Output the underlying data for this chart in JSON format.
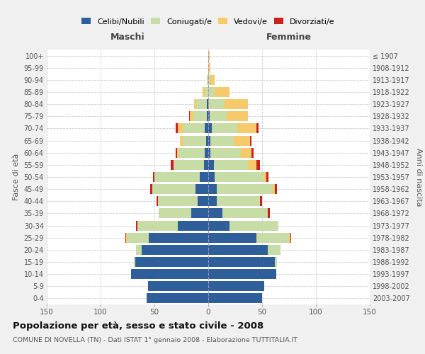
{
  "age_groups": [
    "0-4",
    "5-9",
    "10-14",
    "15-19",
    "20-24",
    "25-29",
    "30-34",
    "35-39",
    "40-44",
    "45-49",
    "50-54",
    "55-59",
    "60-64",
    "65-69",
    "70-74",
    "75-79",
    "80-84",
    "85-89",
    "90-94",
    "95-99",
    "100+"
  ],
  "birth_years": [
    "2003-2007",
    "1998-2002",
    "1993-1997",
    "1988-1992",
    "1983-1987",
    "1978-1982",
    "1973-1977",
    "1968-1972",
    "1963-1967",
    "1958-1962",
    "1953-1957",
    "1948-1952",
    "1943-1947",
    "1938-1942",
    "1933-1937",
    "1928-1932",
    "1923-1927",
    "1918-1922",
    "1913-1917",
    "1908-1912",
    "≤ 1907"
  ],
  "males": {
    "celibe": [
      57,
      56,
      72,
      68,
      62,
      55,
      28,
      16,
      10,
      12,
      8,
      4,
      3,
      2,
      3,
      1,
      1,
      0,
      0,
      0,
      0
    ],
    "coniugato": [
      0,
      0,
      0,
      1,
      5,
      20,
      38,
      30,
      37,
      40,
      42,
      28,
      25,
      22,
      20,
      13,
      10,
      3,
      1,
      0,
      0
    ],
    "vedovo": [
      0,
      0,
      0,
      0,
      0,
      1,
      0,
      0,
      0,
      0,
      0,
      0,
      1,
      2,
      5,
      3,
      2,
      2,
      0,
      0,
      0
    ],
    "divorziato": [
      0,
      0,
      0,
      0,
      0,
      1,
      1,
      0,
      1,
      2,
      1,
      3,
      1,
      0,
      2,
      1,
      0,
      0,
      0,
      0,
      0
    ]
  },
  "females": {
    "nubile": [
      50,
      52,
      63,
      62,
      55,
      45,
      20,
      13,
      8,
      8,
      6,
      5,
      2,
      2,
      3,
      1,
      0,
      0,
      0,
      0,
      0
    ],
    "coniugata": [
      0,
      0,
      0,
      2,
      12,
      30,
      45,
      42,
      40,
      52,
      45,
      32,
      28,
      22,
      24,
      16,
      15,
      6,
      1,
      0,
      0
    ],
    "vedova": [
      0,
      0,
      0,
      0,
      0,
      1,
      0,
      0,
      0,
      2,
      3,
      8,
      10,
      15,
      18,
      20,
      22,
      14,
      5,
      2,
      1
    ],
    "divorziata": [
      0,
      0,
      0,
      0,
      0,
      1,
      0,
      2,
      2,
      2,
      2,
      3,
      2,
      1,
      2,
      0,
      0,
      0,
      0,
      0,
      0
    ]
  },
  "colors": {
    "celibe": "#2e5f9b",
    "coniugato": "#c8dca5",
    "vedovo": "#f6c96a",
    "divorziato": "#cc2020"
  },
  "xlim": 150,
  "title": "Popolazione per età, sesso e stato civile - 2008",
  "subtitle": "COMUNE DI NOVELLA (TN) - Dati ISTAT 1° gennaio 2008 - Elaborazione TUTTITALIA.IT",
  "ylabel_left": "Fasce di età",
  "ylabel_right": "Anni di nascita",
  "xlabel_left": "Maschi",
  "xlabel_right": "Femmine",
  "bg_color": "#f0f0f0",
  "plot_bg": "#ffffff"
}
